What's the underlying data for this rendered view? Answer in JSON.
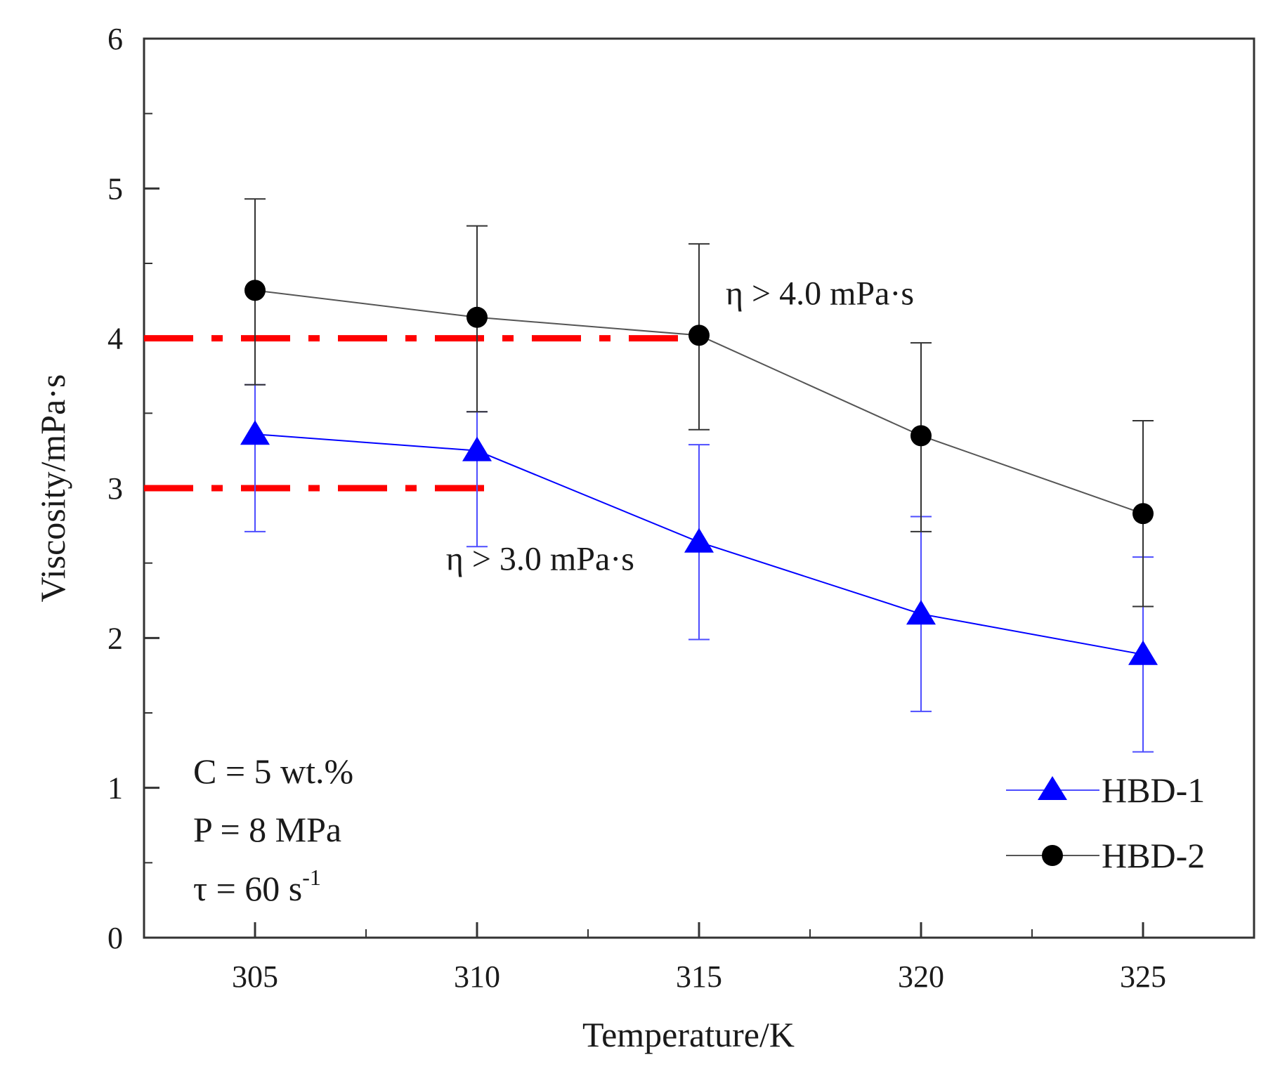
{
  "chart_data": {
    "type": "line",
    "xlabel": "Temperature/K",
    "ylabel": "Viscosity/mPa·s",
    "xlim": [
      302.5,
      327.5
    ],
    "ylim": [
      0,
      6
    ],
    "x_ticks": [
      305,
      310,
      315,
      320,
      325
    ],
    "x_tick_labels": [
      "305",
      "310",
      "315",
      "320",
      "325"
    ],
    "x_minor_ticks": [
      302.5,
      307.5,
      312.5,
      317.5,
      322.5,
      327.5
    ],
    "y_ticks": [
      0,
      1,
      2,
      3,
      4,
      5,
      6
    ],
    "y_tick_labels": [
      "0",
      "1",
      "2",
      "3",
      "4",
      "5",
      "6"
    ],
    "y_minor_ticks": [
      0.5,
      1.5,
      2.5,
      3.5,
      4.5,
      5.5
    ],
    "grid": false,
    "legend_position": "bottom-right",
    "series": [
      {
        "name": "HBD-1",
        "marker": "triangle",
        "color": "#0000ff",
        "x": [
          305,
          310,
          315,
          320,
          325
        ],
        "y": [
          3.36,
          3.25,
          2.64,
          2.16,
          1.89
        ],
        "err_low": [
          2.71,
          2.61,
          1.99,
          1.51,
          1.24
        ],
        "err_high": [
          3.69,
          3.51,
          3.29,
          2.81,
          2.54
        ]
      },
      {
        "name": "HBD-2",
        "marker": "circle",
        "color": "#000000",
        "line_color": "#555555",
        "x": [
          305,
          310,
          315,
          320,
          325
        ],
        "y": [
          4.32,
          4.14,
          4.02,
          3.35,
          2.83
        ],
        "err_low": [
          3.69,
          3.51,
          3.39,
          2.71,
          2.21
        ],
        "err_high": [
          4.93,
          4.75,
          4.63,
          3.97,
          3.45
        ]
      }
    ],
    "threshold_lines": [
      {
        "y": 4.0,
        "x_start": 302.5,
        "x_end": 315.3,
        "color": "#ff0000",
        "style": "dash-dot"
      },
      {
        "y": 3.0,
        "x_start": 302.5,
        "x_end": 310.2,
        "color": "#ff0000",
        "style": "dash-dot"
      }
    ],
    "annotations": [
      {
        "text": "η > 4.0 mPa·s",
        "x": 315.6,
        "y": 4.3
      },
      {
        "text": "η > 3.0 mPa·s",
        "x": 309.3,
        "y": 2.53
      }
    ],
    "conditions": [
      "C = 5 wt.%",
      "P = 8 MPa"
    ],
    "shear_rate": {
      "prefix": "τ = 60 s",
      "superscript": "-1"
    }
  }
}
